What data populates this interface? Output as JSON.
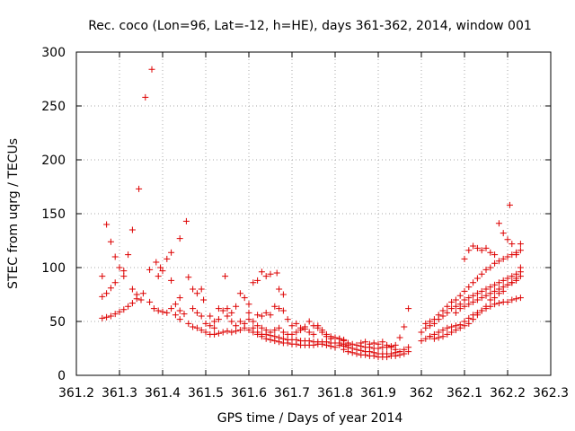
{
  "chart_data": {
    "type": "scatter",
    "title": "Rec. coco (Lon=96, Lat=-12, h=HE), days 361-362, 2014, window 001",
    "xlabel": "GPS time / Days of year 2014",
    "ylabel": "STEC from uqrg / TECUs",
    "xlim": [
      361.2,
      362.3
    ],
    "ylim": [
      0,
      300
    ],
    "xticks": [
      "361.2",
      "361.3",
      "361.4",
      "361.5",
      "361.6",
      "361.7",
      "361.8",
      "361.9",
      "362",
      "362.1",
      "362.2",
      "362.3"
    ],
    "yticks": [
      "0",
      "50",
      "100",
      "150",
      "200",
      "250",
      "300"
    ],
    "grid": true,
    "legend": "none",
    "marker": "+",
    "color": "#dd0000",
    "points": [
      [
        361.26,
        92
      ],
      [
        361.27,
        140
      ],
      [
        361.28,
        124
      ],
      [
        361.29,
        110
      ],
      [
        361.3,
        100
      ],
      [
        361.31,
        97
      ],
      [
        361.32,
        112
      ],
      [
        361.33,
        135
      ],
      [
        361.345,
        173
      ],
      [
        361.36,
        258
      ],
      [
        361.375,
        284
      ],
      [
        361.385,
        105
      ],
      [
        361.395,
        100
      ],
      [
        361.41,
        108
      ],
      [
        361.42,
        114
      ],
      [
        361.44,
        127
      ],
      [
        361.455,
        143
      ],
      [
        361.26,
        73
      ],
      [
        361.27,
        76
      ],
      [
        361.28,
        81
      ],
      [
        361.29,
        86
      ],
      [
        361.31,
        92
      ],
      [
        361.33,
        80
      ],
      [
        361.34,
        75
      ],
      [
        361.35,
        70
      ],
      [
        361.37,
        98
      ],
      [
        361.39,
        92
      ],
      [
        361.4,
        97
      ],
      [
        361.42,
        88
      ],
      [
        361.44,
        72
      ],
      [
        361.46,
        91
      ],
      [
        361.47,
        80
      ],
      [
        361.48,
        76
      ],
      [
        361.49,
        80
      ],
      [
        361.495,
        70
      ],
      [
        361.26,
        53
      ],
      [
        361.27,
        54
      ],
      [
        361.28,
        55
      ],
      [
        361.29,
        57
      ],
      [
        361.3,
        59
      ],
      [
        361.31,
        61
      ],
      [
        361.32,
        64
      ],
      [
        361.33,
        67
      ],
      [
        361.34,
        71
      ],
      [
        361.355,
        76
      ],
      [
        361.37,
        68
      ],
      [
        361.38,
        62
      ],
      [
        361.39,
        60
      ],
      [
        361.4,
        59
      ],
      [
        361.41,
        58
      ],
      [
        361.42,
        62
      ],
      [
        361.43,
        66
      ],
      [
        361.44,
        60
      ],
      [
        361.45,
        57
      ],
      [
        361.46,
        48
      ],
      [
        361.47,
        45
      ],
      [
        361.48,
        44
      ],
      [
        361.49,
        42
      ],
      [
        361.43,
        56
      ],
      [
        361.44,
        52
      ],
      [
        361.47,
        62
      ],
      [
        361.48,
        58
      ],
      [
        361.49,
        55
      ],
      [
        361.5,
        48
      ],
      [
        361.51,
        46
      ],
      [
        361.52,
        44
      ],
      [
        361.53,
        62
      ],
      [
        361.54,
        60
      ],
      [
        361.55,
        62
      ],
      [
        361.56,
        58
      ],
      [
        361.57,
        64
      ],
      [
        361.58,
        76
      ],
      [
        361.59,
        72
      ],
      [
        361.6,
        66
      ],
      [
        361.61,
        86
      ],
      [
        361.62,
        88
      ],
      [
        361.63,
        96
      ],
      [
        361.64,
        92
      ],
      [
        361.65,
        94
      ],
      [
        361.665,
        95
      ],
      [
        361.67,
        80
      ],
      [
        361.68,
        75
      ],
      [
        361.5,
        40
      ],
      [
        361.51,
        38
      ],
      [
        361.52,
        38
      ],
      [
        361.53,
        39
      ],
      [
        361.54,
        40
      ],
      [
        361.55,
        41
      ],
      [
        361.56,
        40
      ],
      [
        361.57,
        41
      ],
      [
        361.58,
        42
      ],
      [
        361.59,
        44
      ],
      [
        361.6,
        42
      ],
      [
        361.61,
        40
      ],
      [
        361.62,
        38
      ],
      [
        361.63,
        36
      ],
      [
        361.64,
        34
      ],
      [
        361.65,
        33
      ],
      [
        361.66,
        32
      ],
      [
        361.67,
        31
      ],
      [
        361.68,
        30
      ],
      [
        361.69,
        30
      ],
      [
        361.7,
        29
      ],
      [
        361.71,
        29
      ],
      [
        361.72,
        28
      ],
      [
        361.73,
        28
      ],
      [
        361.74,
        28
      ],
      [
        361.75,
        28
      ],
      [
        361.76,
        29
      ],
      [
        361.77,
        29
      ],
      [
        361.78,
        28
      ],
      [
        361.79,
        27
      ],
      [
        361.8,
        26
      ],
      [
        361.51,
        55
      ],
      [
        361.52,
        50
      ],
      [
        361.53,
        52
      ],
      [
        361.545,
        92
      ],
      [
        361.55,
        55
      ],
      [
        361.56,
        50
      ],
      [
        361.57,
        46
      ],
      [
        361.58,
        50
      ],
      [
        361.59,
        48
      ],
      [
        361.6,
        52
      ],
      [
        361.61,
        50
      ],
      [
        361.62,
        46
      ],
      [
        361.63,
        44
      ],
      [
        361.64,
        42
      ],
      [
        361.65,
        40
      ],
      [
        361.66,
        42
      ],
      [
        361.67,
        44
      ],
      [
        361.68,
        40
      ],
      [
        361.69,
        38
      ],
      [
        361.7,
        38
      ],
      [
        361.71,
        40
      ],
      [
        361.72,
        42
      ],
      [
        361.73,
        45
      ],
      [
        361.74,
        40
      ],
      [
        361.75,
        38
      ],
      [
        361.76,
        44
      ],
      [
        361.77,
        42
      ],
      [
        361.78,
        38
      ],
      [
        361.79,
        36
      ],
      [
        361.6,
        58
      ],
      [
        361.62,
        56
      ],
      [
        361.63,
        55
      ],
      [
        361.64,
        58
      ],
      [
        361.65,
        56
      ],
      [
        361.66,
        64
      ],
      [
        361.67,
        62
      ],
      [
        361.68,
        60
      ],
      [
        361.69,
        52
      ],
      [
        361.7,
        46
      ],
      [
        361.71,
        48
      ],
      [
        361.72,
        44
      ],
      [
        361.73,
        43
      ],
      [
        361.74,
        50
      ],
      [
        361.75,
        46
      ],
      [
        361.76,
        46
      ],
      [
        361.77,
        40
      ],
      [
        361.78,
        36
      ],
      [
        361.79,
        34
      ],
      [
        361.8,
        35
      ],
      [
        361.81,
        34
      ],
      [
        361.82,
        33
      ],
      [
        361.61,
        44
      ],
      [
        361.62,
        40
      ],
      [
        361.63,
        38
      ],
      [
        361.64,
        38
      ],
      [
        361.65,
        37
      ],
      [
        361.66,
        36
      ],
      [
        361.67,
        35
      ],
      [
        361.68,
        34
      ],
      [
        361.69,
        33
      ],
      [
        361.7,
        33
      ],
      [
        361.71,
        33
      ],
      [
        361.72,
        32
      ],
      [
        361.73,
        32
      ],
      [
        361.74,
        32
      ],
      [
        361.75,
        31
      ],
      [
        361.76,
        31
      ],
      [
        361.77,
        31
      ],
      [
        361.78,
        31
      ],
      [
        361.79,
        30
      ],
      [
        361.8,
        30
      ],
      [
        361.81,
        30
      ],
      [
        361.82,
        29
      ],
      [
        361.83,
        28
      ],
      [
        361.8,
        30
      ],
      [
        361.81,
        28
      ],
      [
        361.82,
        27
      ],
      [
        361.83,
        26
      ],
      [
        361.84,
        25
      ],
      [
        361.85,
        24
      ],
      [
        361.86,
        23
      ],
      [
        361.87,
        22
      ],
      [
        361.88,
        22
      ],
      [
        361.89,
        21
      ],
      [
        361.9,
        20
      ],
      [
        361.91,
        20
      ],
      [
        361.92,
        20
      ],
      [
        361.93,
        20
      ],
      [
        361.94,
        21
      ],
      [
        361.95,
        22
      ],
      [
        361.96,
        24
      ],
      [
        361.97,
        26
      ],
      [
        361.81,
        34
      ],
      [
        361.82,
        32
      ],
      [
        361.83,
        30
      ],
      [
        361.84,
        29
      ],
      [
        361.85,
        28
      ],
      [
        361.86,
        27
      ],
      [
        361.87,
        26
      ],
      [
        361.88,
        26
      ],
      [
        361.89,
        25
      ],
      [
        361.9,
        25
      ],
      [
        361.91,
        26
      ],
      [
        361.92,
        26
      ],
      [
        361.93,
        27
      ],
      [
        361.94,
        28
      ],
      [
        361.95,
        35
      ],
      [
        361.96,
        45
      ],
      [
        361.82,
        24
      ],
      [
        361.83,
        22
      ],
      [
        361.84,
        21
      ],
      [
        361.85,
        20
      ],
      [
        361.86,
        19
      ],
      [
        361.87,
        19
      ],
      [
        361.88,
        18
      ],
      [
        361.89,
        18
      ],
      [
        361.9,
        17
      ],
      [
        361.91,
        17
      ],
      [
        361.92,
        17
      ],
      [
        361.93,
        18
      ],
      [
        361.94,
        18
      ],
      [
        361.95,
        19
      ],
      [
        361.96,
        20
      ],
      [
        361.97,
        22
      ],
      [
        361.86,
        30
      ],
      [
        361.87,
        31
      ],
      [
        361.88,
        29
      ],
      [
        361.89,
        30
      ],
      [
        361.9,
        29
      ],
      [
        361.91,
        31
      ],
      [
        361.92,
        28
      ],
      [
        361.93,
        26
      ],
      [
        361.94,
        24
      ],
      [
        361.95,
        22
      ],
      [
        361.97,
        62
      ],
      [
        362.0,
        32
      ],
      [
        362.01,
        34
      ],
      [
        362.02,
        36
      ],
      [
        362.03,
        38
      ],
      [
        362.04,
        40
      ],
      [
        362.05,
        42
      ],
      [
        362.06,
        44
      ],
      [
        362.07,
        45
      ],
      [
        362.08,
        46
      ],
      [
        362.09,
        47
      ],
      [
        362.1,
        50
      ],
      [
        362.11,
        53
      ],
      [
        362.12,
        56
      ],
      [
        362.13,
        58
      ],
      [
        362.14,
        60
      ],
      [
        362.15,
        62
      ],
      [
        362.16,
        64
      ],
      [
        362.17,
        66
      ],
      [
        362.18,
        67
      ],
      [
        362.19,
        68
      ],
      [
        362.2,
        68
      ],
      [
        362.21,
        70
      ],
      [
        362.22,
        71
      ],
      [
        362.23,
        72
      ],
      [
        362.0,
        40
      ],
      [
        362.01,
        44
      ],
      [
        362.02,
        46
      ],
      [
        362.03,
        48
      ],
      [
        362.04,
        52
      ],
      [
        362.05,
        55
      ],
      [
        362.06,
        58
      ],
      [
        362.07,
        62
      ],
      [
        362.08,
        64
      ],
      [
        362.09,
        66
      ],
      [
        362.1,
        70
      ],
      [
        362.11,
        72
      ],
      [
        362.12,
        74
      ],
      [
        362.13,
        76
      ],
      [
        362.14,
        78
      ],
      [
        362.15,
        80
      ],
      [
        362.16,
        82
      ],
      [
        362.17,
        84
      ],
      [
        362.18,
        86
      ],
      [
        362.19,
        88
      ],
      [
        362.2,
        90
      ],
      [
        362.21,
        92
      ],
      [
        362.22,
        94
      ],
      [
        362.23,
        96
      ],
      [
        362.01,
        48
      ],
      [
        362.02,
        50
      ],
      [
        362.03,
        52
      ],
      [
        362.04,
        56
      ],
      [
        362.05,
        60
      ],
      [
        362.06,
        64
      ],
      [
        362.07,
        68
      ],
      [
        362.08,
        70
      ],
      [
        362.09,
        74
      ],
      [
        362.1,
        78
      ],
      [
        362.11,
        82
      ],
      [
        362.12,
        86
      ],
      [
        362.13,
        90
      ],
      [
        362.14,
        94
      ],
      [
        362.15,
        98
      ],
      [
        362.16,
        100
      ],
      [
        362.17,
        104
      ],
      [
        362.18,
        106
      ],
      [
        362.19,
        108
      ],
      [
        362.2,
        110
      ],
      [
        362.21,
        112
      ],
      [
        362.22,
        114
      ],
      [
        362.23,
        116
      ],
      [
        362.1,
        108
      ],
      [
        362.11,
        116
      ],
      [
        362.12,
        120
      ],
      [
        362.13,
        118
      ],
      [
        362.14,
        116
      ],
      [
        362.15,
        118
      ],
      [
        362.16,
        114
      ],
      [
        362.17,
        112
      ],
      [
        362.18,
        141
      ],
      [
        362.19,
        132
      ],
      [
        362.2,
        126
      ],
      [
        362.205,
        158
      ],
      [
        362.21,
        122
      ],
      [
        362.22,
        112
      ],
      [
        362.23,
        122
      ],
      [
        362.02,
        36
      ],
      [
        362.03,
        34
      ],
      [
        362.04,
        35
      ],
      [
        362.05,
        36
      ],
      [
        362.06,
        38
      ],
      [
        362.07,
        40
      ],
      [
        362.08,
        42
      ],
      [
        362.09,
        44
      ],
      [
        362.1,
        46
      ],
      [
        362.11,
        48
      ],
      [
        362.12,
        52
      ],
      [
        362.13,
        56
      ],
      [
        362.14,
        60
      ],
      [
        362.15,
        64
      ],
      [
        362.16,
        70
      ],
      [
        362.17,
        72
      ],
      [
        362.18,
        76
      ],
      [
        362.19,
        78
      ],
      [
        362.2,
        84
      ],
      [
        362.21,
        86
      ],
      [
        362.22,
        90
      ],
      [
        362.23,
        100
      ],
      [
        362.08,
        58
      ],
      [
        362.09,
        62
      ],
      [
        362.1,
        64
      ],
      [
        362.11,
        66
      ],
      [
        362.12,
        68
      ],
      [
        362.13,
        70
      ],
      [
        362.14,
        72
      ],
      [
        362.15,
        74
      ],
      [
        362.16,
        76
      ],
      [
        362.17,
        78
      ],
      [
        362.18,
        80
      ],
      [
        362.19,
        82
      ],
      [
        362.2,
        84
      ],
      [
        362.21,
        86
      ],
      [
        362.22,
        88
      ],
      [
        362.23,
        92
      ]
    ]
  }
}
